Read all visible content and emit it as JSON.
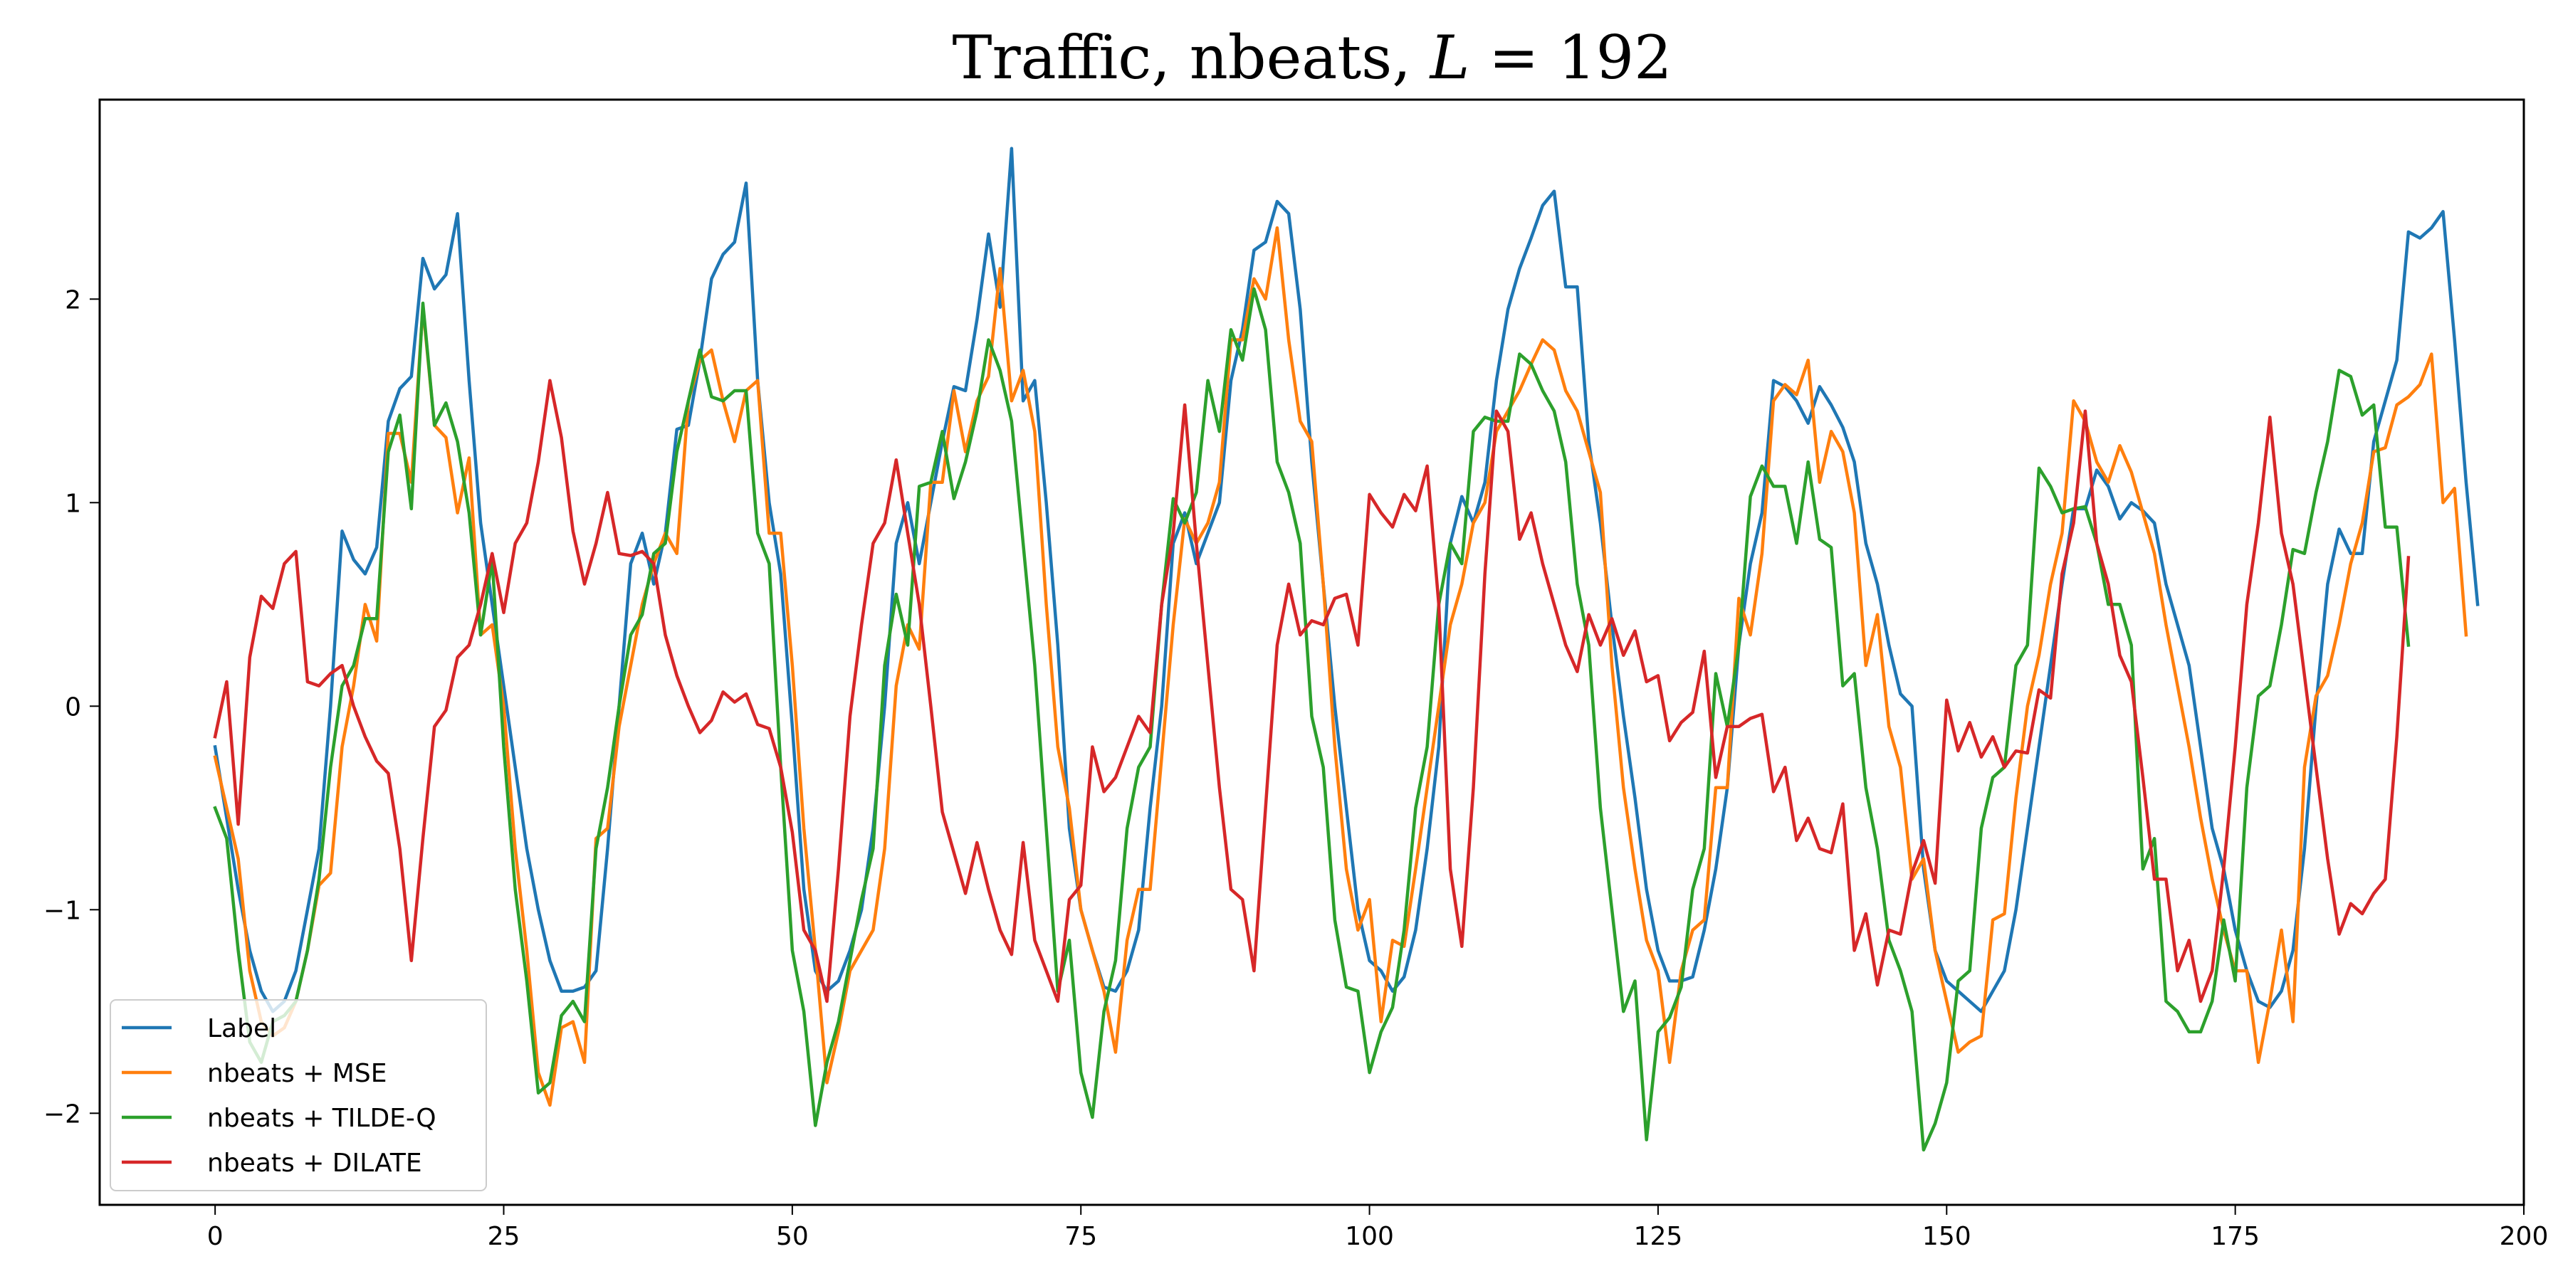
{
  "chart_data": {
    "type": "line",
    "title": {
      "prefix": "Traffic, nbeats, ",
      "italic_var": "L",
      "suffix": " = 192"
    },
    "xlabel": "",
    "ylabel": "",
    "xlim": [
      -10,
      200
    ],
    "ylim": [
      -2.45,
      2.98
    ],
    "xticks": [
      0,
      25,
      50,
      75,
      100,
      125,
      150,
      175,
      200
    ],
    "yticks": [
      -2,
      -1,
      0,
      1,
      2
    ],
    "grid": false,
    "legend_position": "lower-left",
    "series": [
      {
        "name": "Label",
        "color": "#1f77b4",
        "values": [
          -0.2,
          -0.55,
          -0.9,
          -1.2,
          -1.4,
          -1.5,
          -1.45,
          -1.3,
          -1.0,
          -0.7,
          0.0,
          0.86,
          0.72,
          0.65,
          0.78,
          1.4,
          1.56,
          1.62,
          2.2,
          2.05,
          2.12,
          2.42,
          1.6,
          0.9,
          0.5,
          0.1,
          -0.3,
          -0.7,
          -1.0,
          -1.25,
          -1.4,
          -1.4,
          -1.38,
          -1.3,
          -0.7,
          0.0,
          0.7,
          0.85,
          0.6,
          0.85,
          1.36,
          1.38,
          1.7,
          2.1,
          2.22,
          2.28,
          2.57,
          1.6,
          1.0,
          0.65,
          -0.1,
          -0.9,
          -1.3,
          -1.4,
          -1.35,
          -1.2,
          -1.0,
          -0.6,
          0.0,
          0.8,
          1.0,
          0.7,
          1.0,
          1.3,
          1.57,
          1.55,
          1.9,
          2.32,
          1.96,
          2.74,
          1.5,
          1.6,
          1.0,
          0.3,
          -0.6,
          -1.0,
          -1.2,
          -1.38,
          -1.4,
          -1.3,
          -1.1,
          -0.5,
          0.0,
          0.8,
          0.95,
          0.7,
          0.85,
          1.0,
          1.6,
          1.85,
          2.24,
          2.28,
          2.48,
          2.42,
          1.95,
          1.2,
          0.6,
          0.0,
          -0.5,
          -1.0,
          -1.25,
          -1.3,
          -1.4,
          -1.33,
          -1.1,
          -0.7,
          -0.2,
          0.8,
          1.03,
          0.9,
          1.1,
          1.6,
          1.95,
          2.15,
          2.3,
          2.46,
          2.53,
          2.06,
          2.06,
          1.3,
          0.9,
          0.4,
          -0.05,
          -0.45,
          -0.9,
          -1.2,
          -1.35,
          -1.35,
          -1.33,
          -1.1,
          -0.8,
          -0.4,
          0.3,
          0.7,
          0.95,
          1.6,
          1.57,
          1.5,
          1.39,
          1.57,
          1.48,
          1.37,
          1.2,
          0.8,
          0.6,
          0.3,
          0.06,
          0.0,
          -0.8,
          -1.2,
          -1.35,
          -1.4,
          -1.45,
          -1.5,
          -1.4,
          -1.3,
          -1.0,
          -0.6,
          -0.2,
          0.2,
          0.6,
          0.97,
          0.97,
          1.16,
          1.08,
          0.92,
          1.0,
          0.96,
          0.9,
          0.6,
          0.4,
          0.2,
          -0.2,
          -0.6,
          -0.8,
          -1.1,
          -1.3,
          -1.45,
          -1.48,
          -1.4,
          -1.2,
          -0.7,
          0.0,
          0.6,
          0.87,
          0.75,
          0.75,
          1.3,
          1.5,
          1.7,
          2.33,
          2.3,
          2.35,
          2.43,
          1.8,
          1.1,
          0.5
        ]
      },
      {
        "name": "nbeats + MSE",
        "color": "#ff7f0e",
        "values": [
          -0.25,
          -0.5,
          -0.75,
          -1.3,
          -1.55,
          -1.62,
          -1.58,
          -1.45,
          -1.2,
          -0.88,
          -0.82,
          -0.2,
          0.1,
          0.5,
          0.32,
          1.34,
          1.34,
          1.1,
          1.96,
          1.38,
          1.32,
          0.95,
          1.22,
          0.35,
          0.4,
          0.0,
          -0.7,
          -1.2,
          -1.8,
          -1.96,
          -1.58,
          -1.55,
          -1.75,
          -0.65,
          -0.6,
          -0.1,
          0.2,
          0.5,
          0.7,
          0.85,
          0.75,
          1.5,
          1.7,
          1.75,
          1.5,
          1.3,
          1.55,
          1.6,
          0.85,
          0.85,
          0.2,
          -0.6,
          -1.2,
          -1.85,
          -1.6,
          -1.3,
          -1.2,
          -1.1,
          -0.7,
          0.1,
          0.4,
          0.28,
          1.1,
          1.1,
          1.55,
          1.25,
          1.5,
          1.62,
          2.15,
          1.5,
          1.65,
          1.35,
          0.5,
          -0.2,
          -0.5,
          -1.0,
          -1.2,
          -1.4,
          -1.7,
          -1.15,
          -0.9,
          -0.9,
          -0.25,
          0.4,
          0.92,
          0.8,
          0.9,
          1.1,
          1.8,
          1.8,
          2.1,
          2.0,
          2.35,
          1.8,
          1.4,
          1.3,
          0.6,
          -0.2,
          -0.8,
          -1.1,
          -0.95,
          -1.55,
          -1.15,
          -1.18,
          -0.8,
          -0.4,
          0.0,
          0.4,
          0.6,
          0.9,
          1.0,
          1.35,
          1.45,
          1.55,
          1.68,
          1.8,
          1.75,
          1.55,
          1.45,
          1.25,
          1.05,
          0.2,
          -0.4,
          -0.8,
          -1.15,
          -1.3,
          -1.75,
          -1.3,
          -1.1,
          -1.05,
          -0.4,
          -0.4,
          0.53,
          0.35,
          0.75,
          1.5,
          1.58,
          1.53,
          1.7,
          1.1,
          1.35,
          1.25,
          0.95,
          0.2,
          0.45,
          -0.1,
          -0.3,
          -0.85,
          -0.75,
          -1.2,
          -1.45,
          -1.7,
          -1.65,
          -1.62,
          -1.05,
          -1.02,
          -0.45,
          0.0,
          0.25,
          0.6,
          0.85,
          1.5,
          1.4,
          1.2,
          1.1,
          1.28,
          1.15,
          0.95,
          0.75,
          0.4,
          0.1,
          -0.2,
          -0.55,
          -0.85,
          -1.1,
          -1.3,
          -1.3,
          -1.75,
          -1.45,
          -1.1,
          -1.55,
          -0.3,
          0.05,
          0.15,
          0.4,
          0.7,
          0.9,
          1.25,
          1.27,
          1.48,
          1.52,
          1.58,
          1.73,
          1.0,
          1.07,
          0.35
        ]
      },
      {
        "name": "nbeats + TILDE-Q",
        "color": "#2ca02c",
        "values": [
          -0.5,
          -0.65,
          -1.2,
          -1.65,
          -1.75,
          -1.55,
          -1.52,
          -1.45,
          -1.2,
          -0.85,
          -0.3,
          0.1,
          0.2,
          0.43,
          0.43,
          1.25,
          1.43,
          0.97,
          1.98,
          1.38,
          1.49,
          1.3,
          0.95,
          0.35,
          0.72,
          -0.2,
          -0.9,
          -1.35,
          -1.9,
          -1.85,
          -1.52,
          -1.45,
          -1.55,
          -0.7,
          -0.4,
          0.0,
          0.35,
          0.45,
          0.75,
          0.8,
          1.25,
          1.5,
          1.75,
          1.52,
          1.5,
          1.55,
          1.55,
          0.85,
          0.7,
          -0.3,
          -1.2,
          -1.5,
          -2.06,
          -1.75,
          -1.55,
          -1.25,
          -0.95,
          -0.7,
          0.2,
          0.55,
          0.3,
          1.08,
          1.1,
          1.35,
          1.02,
          1.2,
          1.45,
          1.8,
          1.65,
          1.4,
          0.8,
          0.2,
          -0.6,
          -1.4,
          -1.15,
          -1.8,
          -2.02,
          -1.5,
          -1.25,
          -0.6,
          -0.3,
          -0.2,
          0.5,
          1.02,
          0.9,
          1.05,
          1.6,
          1.35,
          1.85,
          1.7,
          2.05,
          1.85,
          1.2,
          1.05,
          0.8,
          -0.05,
          -0.3,
          -1.05,
          -1.38,
          -1.4,
          -1.8,
          -1.6,
          -1.48,
          -1.1,
          -0.5,
          -0.2,
          0.5,
          0.8,
          0.7,
          1.35,
          1.42,
          1.4,
          1.4,
          1.73,
          1.68,
          1.55,
          1.45,
          1.2,
          0.6,
          0.3,
          -0.5,
          -1.0,
          -1.5,
          -1.35,
          -2.13,
          -1.6,
          -1.53,
          -1.38,
          -0.9,
          -0.7,
          0.16,
          -0.1,
          0.3,
          1.03,
          1.18,
          1.08,
          1.08,
          0.8,
          1.2,
          0.82,
          0.78,
          0.1,
          0.16,
          -0.4,
          -0.7,
          -1.15,
          -1.3,
          -1.5,
          -2.18,
          -2.05,
          -1.85,
          -1.35,
          -1.3,
          -0.6,
          -0.35,
          -0.3,
          0.2,
          0.3,
          1.17,
          1.08,
          0.95,
          0.97,
          0.98,
          0.8,
          0.5,
          0.5,
          0.3,
          -0.8,
          -0.65,
          -1.45,
          -1.5,
          -1.6,
          -1.6,
          -1.45,
          -1.05,
          -1.35,
          -0.4,
          0.05,
          0.1,
          0.4,
          0.77,
          0.75,
          1.05,
          1.3,
          1.65,
          1.62,
          1.43,
          1.48,
          0.88,
          0.88,
          0.3
        ]
      },
      {
        "name": "nbeats + DILATE",
        "color": "#d62728",
        "values": [
          -0.15,
          0.12,
          -0.58,
          0.24,
          0.54,
          0.48,
          0.7,
          0.76,
          0.12,
          0.1,
          0.16,
          0.2,
          0.0,
          -0.15,
          -0.27,
          -0.33,
          -0.7,
          -1.25,
          -0.65,
          -0.1,
          -0.02,
          0.24,
          0.3,
          0.5,
          0.75,
          0.46,
          0.8,
          0.9,
          1.2,
          1.6,
          1.32,
          0.86,
          0.6,
          0.8,
          1.05,
          0.75,
          0.74,
          0.76,
          0.7,
          0.35,
          0.15,
          0.0,
          -0.13,
          -0.07,
          0.07,
          0.02,
          0.06,
          -0.09,
          -0.11,
          -0.3,
          -0.62,
          -1.1,
          -1.2,
          -1.45,
          -0.8,
          -0.05,
          0.4,
          0.8,
          0.9,
          1.21,
          0.85,
          0.5,
          0.0,
          -0.52,
          -0.72,
          -0.92,
          -0.67,
          -0.9,
          -1.1,
          -1.22,
          -0.67,
          -1.15,
          -1.3,
          -1.45,
          -0.95,
          -0.88,
          -0.2,
          -0.42,
          -0.35,
          -0.2,
          -0.05,
          -0.13,
          0.5,
          0.85,
          1.48,
          0.8,
          0.2,
          -0.4,
          -0.9,
          -0.95,
          -1.3,
          -0.5,
          0.3,
          0.6,
          0.35,
          0.42,
          0.4,
          0.53,
          0.55,
          0.3,
          1.04,
          0.95,
          0.88,
          1.04,
          0.96,
          1.18,
          0.5,
          -0.8,
          -1.18,
          -0.4,
          0.65,
          1.45,
          1.35,
          0.82,
          0.95,
          0.7,
          0.5,
          0.3,
          0.17,
          0.45,
          0.3,
          0.43,
          0.25,
          0.37,
          0.12,
          0.15,
          -0.17,
          -0.08,
          -0.03,
          0.27,
          -0.35,
          -0.1,
          -0.1,
          -0.06,
          -0.04,
          -0.42,
          -0.3,
          -0.66,
          -0.55,
          -0.7,
          -0.72,
          -0.48,
          -1.2,
          -1.02,
          -1.37,
          -1.1,
          -1.12,
          -0.82,
          -0.66,
          -0.87,
          0.03,
          -0.22,
          -0.08,
          -0.25,
          -0.15,
          -0.3,
          -0.22,
          -0.23,
          0.08,
          0.04,
          0.65,
          0.9,
          1.45,
          0.8,
          0.6,
          0.25,
          0.12,
          -0.35,
          -0.85,
          -0.85,
          -1.3,
          -1.15,
          -1.45,
          -1.3,
          -0.8,
          -0.2,
          0.5,
          0.9,
          1.42,
          0.85,
          0.6,
          0.15,
          -0.3,
          -0.75,
          -1.12,
          -0.97,
          -1.02,
          -0.92,
          -0.85,
          -0.15,
          0.73
        ]
      }
    ]
  }
}
